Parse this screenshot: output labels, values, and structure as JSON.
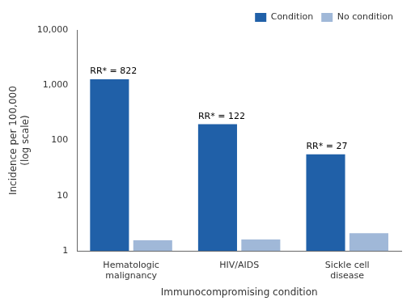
{
  "chart_data": {
    "type": "bar",
    "categories": [
      "Hematologic\nmalignancy",
      "HIV/AIDS",
      "Sickle cell\ndisease"
    ],
    "series": [
      {
        "name": "Condition",
        "color": "#2060a8",
        "values": [
          1282,
          197,
          56
        ]
      },
      {
        "name": "No condition",
        "color": "#a0b8d8",
        "values": [
          1.56,
          1.61,
          2.1
        ]
      }
    ],
    "xlabel": "Immunocompromising condition",
    "ylabel": "Incidence per 100,000\n(log scale)",
    "log": "y",
    "ylim": [
      1,
      10000
    ],
    "yticks": [
      1,
      10,
      100,
      {
        "value": 1000,
        "label": "1,000"
      },
      {
        "value": 10000,
        "label": "10,000"
      }
    ],
    "grid": false,
    "legend": "upper right",
    "annotations": [
      {
        "text": "RR* = 822",
        "category": "Hematologic\nmalignancy",
        "series": "Condition"
      },
      {
        "text": "RR* = 122",
        "category": "HIV/AIDS",
        "series": "Condition"
      },
      {
        "text": "RR* = 27",
        "category": "Sickle cell\ndisease",
        "series": "Condition"
      }
    ]
  }
}
